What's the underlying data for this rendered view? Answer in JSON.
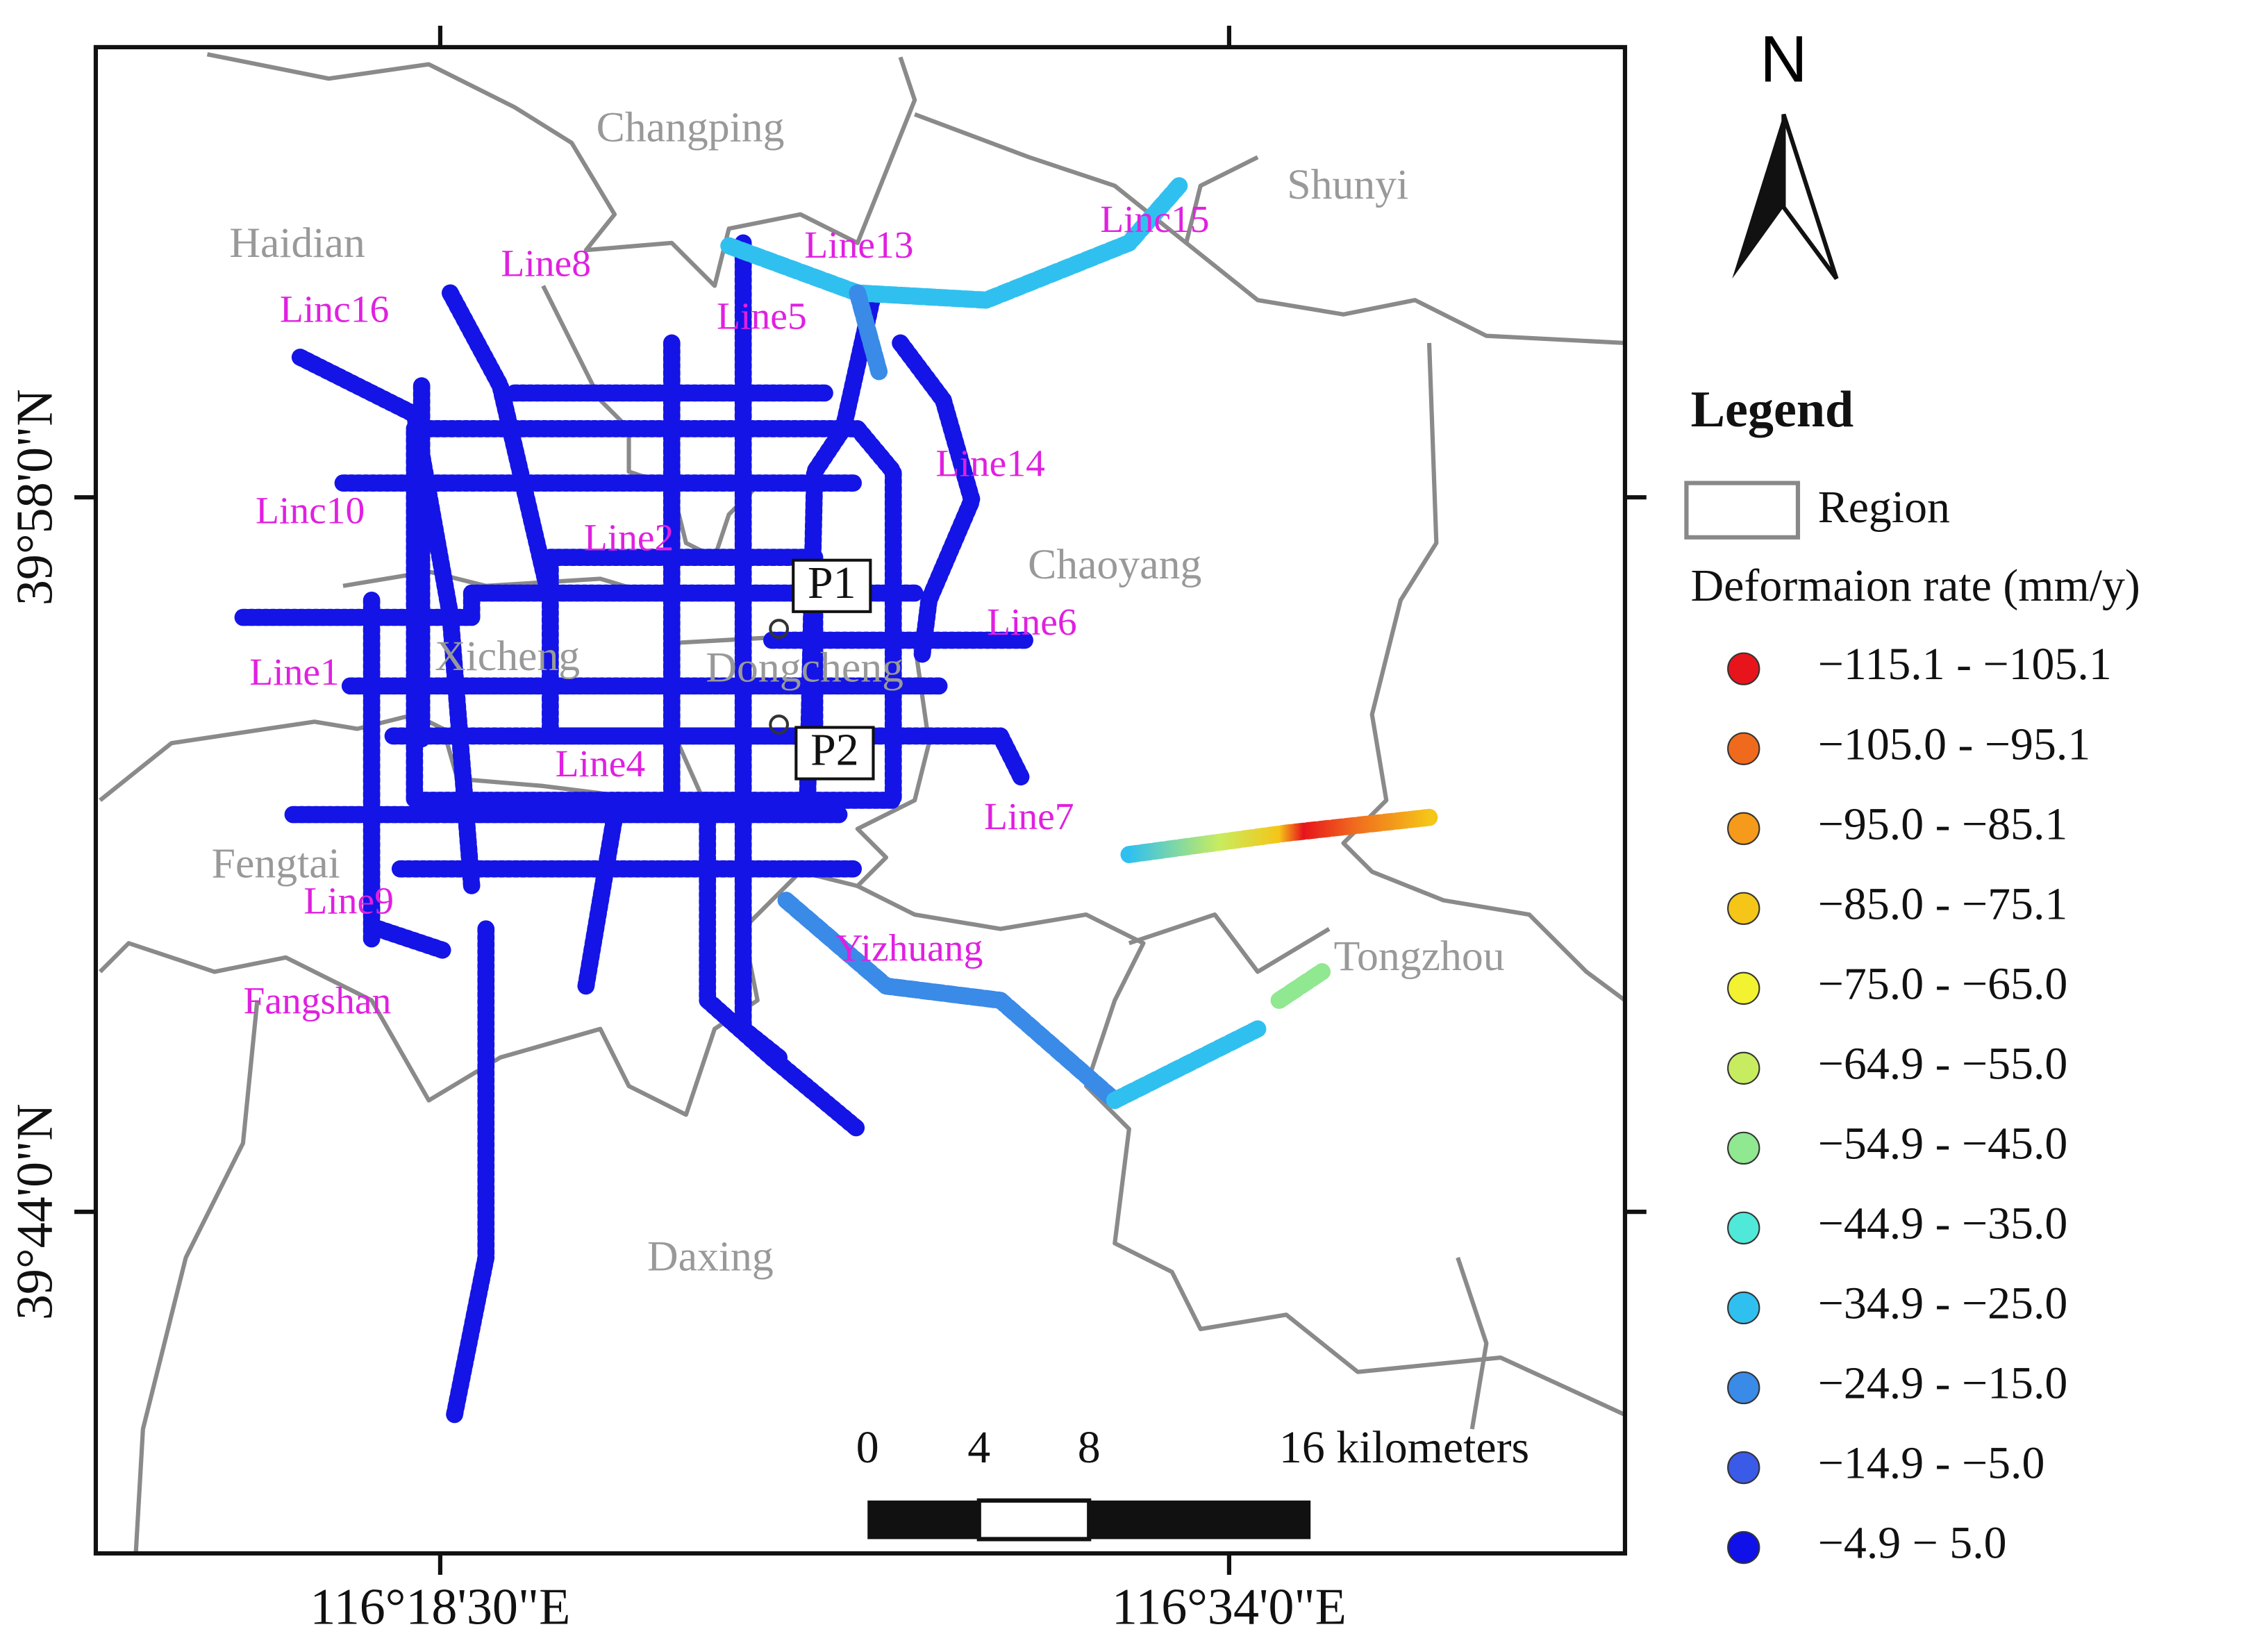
{
  "north": "N",
  "coordinates": {
    "lat": [
      "39°58'0\"N",
      "39°44'0\"N"
    ],
    "lon": [
      "116°18'30\"E",
      "116°34'0\"E"
    ]
  },
  "regions": [
    "Changping",
    "Shunyi",
    "Haidian",
    "Chaoyang",
    "Xicheng",
    "Dongcheng",
    "Fengtai",
    "Tongzhou",
    "Daxing"
  ],
  "lines": [
    "Line8",
    "Line13",
    "Linc15",
    "Linc16",
    "Line5",
    "Line14",
    "Linc10",
    "Line2",
    "Line6",
    "Line1",
    "Line4",
    "Line7",
    "Line9",
    "Yizhuang",
    "Fangshan"
  ],
  "points": [
    "P1",
    "P2"
  ],
  "legend": {
    "title": "Legend",
    "region": "Region",
    "rate_title": "Deformaion rate (mm/y)",
    "items": [
      {
        "label": "−115.1 - −105.1",
        "color": "#e8141c"
      },
      {
        "label": "−105.0 - −95.1",
        "color": "#f06a1e"
      },
      {
        "label": "−95.0 - −85.1",
        "color": "#f59a1a"
      },
      {
        "label": "−85.0 - −75.1",
        "color": "#f5c518"
      },
      {
        "label": "−75.0 - −65.0",
        "color": "#f2f230"
      },
      {
        "label": "−64.9 - −55.0",
        "color": "#c8ec60"
      },
      {
        "label": "−54.9 - −45.0",
        "color": "#90e890"
      },
      {
        "label": "−44.9 - −35.0",
        "color": "#50e8d8"
      },
      {
        "label": "−34.9 - −25.0",
        "color": "#30c0f0"
      },
      {
        "label": "−24.9 - −15.0",
        "color": "#3a8ae8"
      },
      {
        "label": "−14.9 - −5.0",
        "color": "#3a5ae8"
      },
      {
        "label": "−4.9 − 5.0",
        "color": "#1010e8"
      }
    ]
  },
  "scale": {
    "labels": [
      "0",
      "4",
      "8",
      "16 kilometers"
    ]
  }
}
